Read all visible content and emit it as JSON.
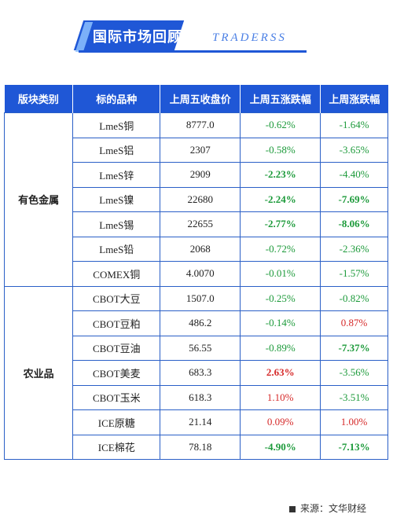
{
  "header": {
    "title": "国际市场回顾",
    "subtitle": "TRADERSS"
  },
  "table": {
    "columns": [
      "版块类别",
      "标的品种",
      "上周五收盘价",
      "上周五涨跌幅",
      "上周涨跌幅"
    ],
    "groups": [
      {
        "category": "有色金属",
        "rows": [
          {
            "name": "LmeS铜",
            "close": "8777.0",
            "fri_chg": "-0.62%",
            "fri_color": "green",
            "fri_bold": false,
            "week_chg": "-1.64%",
            "week_color": "green",
            "week_bold": false
          },
          {
            "name": "LmeS铝",
            "close": "2307",
            "fri_chg": "-0.58%",
            "fri_color": "green",
            "fri_bold": false,
            "week_chg": "-3.65%",
            "week_color": "green",
            "week_bold": false
          },
          {
            "name": "LmeS锌",
            "close": "2909",
            "fri_chg": "-2.23%",
            "fri_color": "green",
            "fri_bold": true,
            "week_chg": "-4.40%",
            "week_color": "green",
            "week_bold": false
          },
          {
            "name": "LmeS镍",
            "close": "22680",
            "fri_chg": "-2.24%",
            "fri_color": "green",
            "fri_bold": true,
            "week_chg": "-7.69%",
            "week_color": "green",
            "week_bold": true
          },
          {
            "name": "LmeS锡",
            "close": "22655",
            "fri_chg": "-2.77%",
            "fri_color": "green",
            "fri_bold": true,
            "week_chg": "-8.06%",
            "week_color": "green",
            "week_bold": true
          },
          {
            "name": "LmeS铅",
            "close": "2068",
            "fri_chg": "-0.72%",
            "fri_color": "green",
            "fri_bold": false,
            "week_chg": "-2.36%",
            "week_color": "green",
            "week_bold": false
          },
          {
            "name": "COMEX铜",
            "close": "4.0070",
            "fri_chg": "-0.01%",
            "fri_color": "green",
            "fri_bold": false,
            "week_chg": "-1.57%",
            "week_color": "green",
            "week_bold": false
          }
        ]
      },
      {
        "category": "农业品",
        "rows": [
          {
            "name": "CBOT大豆",
            "close": "1507.0",
            "fri_chg": "-0.25%",
            "fri_color": "green",
            "fri_bold": false,
            "week_chg": "-0.82%",
            "week_color": "green",
            "week_bold": false
          },
          {
            "name": "CBOT豆粕",
            "close": "486.2",
            "fri_chg": "-0.14%",
            "fri_color": "green",
            "fri_bold": false,
            "week_chg": "0.87%",
            "week_color": "red",
            "week_bold": false
          },
          {
            "name": "CBOT豆油",
            "close": "56.55",
            "fri_chg": "-0.89%",
            "fri_color": "green",
            "fri_bold": false,
            "week_chg": "-7.37%",
            "week_color": "green",
            "week_bold": true
          },
          {
            "name": "CBOT美麦",
            "close": "683.3",
            "fri_chg": "2.63%",
            "fri_color": "red",
            "fri_bold": true,
            "week_chg": "-3.56%",
            "week_color": "green",
            "week_bold": false
          },
          {
            "name": "CBOT玉米",
            "close": "618.3",
            "fri_chg": "1.10%",
            "fri_color": "red",
            "fri_bold": false,
            "week_chg": "-3.51%",
            "week_color": "green",
            "week_bold": false
          },
          {
            "name": "ICE原糖",
            "close": "21.14",
            "fri_chg": "0.09%",
            "fri_color": "red",
            "fri_bold": false,
            "week_chg": "1.00%",
            "week_color": "red",
            "week_bold": false
          },
          {
            "name": "ICE棉花",
            "close": "78.18",
            "fri_chg": "-4.90%",
            "fri_color": "green",
            "fri_bold": true,
            "week_chg": "-7.13%",
            "week_color": "green",
            "week_bold": true
          }
        ]
      }
    ]
  },
  "colors": {
    "accent": "#1f57d6",
    "up": "#d62a2a",
    "down": "#1c9a3a"
  },
  "footer": {
    "source": "来源：文华财经"
  }
}
